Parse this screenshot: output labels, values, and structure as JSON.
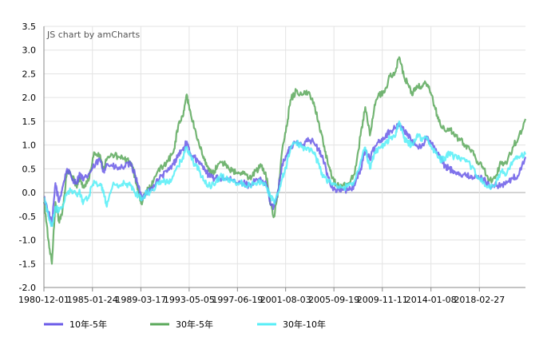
{
  "chart_data": {
    "type": "line",
    "title": "",
    "credit": "JS chart by amCharts",
    "xlabel": "",
    "ylabel": "",
    "ylim": [
      -2.0,
      3.5
    ],
    "y_ticks": [
      "3.5",
      "3.0",
      "2.5",
      "2.0",
      "1.5",
      "1.0",
      "0.5",
      "0.0",
      "-0.5",
      "-1.0",
      "-1.5",
      "-2.0"
    ],
    "x_range": [
      1980.92,
      2022.1
    ],
    "x_ticks": [
      {
        "label": "1980-12-01",
        "year": 1980.92
      },
      {
        "label": "1985-01-24",
        "year": 1985.07
      },
      {
        "label": "1989-03-17",
        "year": 1989.21
      },
      {
        "label": "1993-05-05",
        "year": 1993.34
      },
      {
        "label": "1997-06-19",
        "year": 1997.47
      },
      {
        "label": "2001-08-03",
        "year": 2001.59
      },
      {
        "label": "2005-09-19",
        "year": 2005.72
      },
      {
        "label": "2009-11-11",
        "year": 2009.86
      },
      {
        "label": "2014-01-08",
        "year": 2014.02
      },
      {
        "label": "2018-02-27",
        "year": 2018.16
      }
    ],
    "grid": true,
    "legend_position": "bottom",
    "series": [
      {
        "name": "10年-5年",
        "color": "#6a5ae8",
        "points": [
          [
            1980.92,
            -0.1
          ],
          [
            1981.3,
            -0.4
          ],
          [
            1981.6,
            -0.7
          ],
          [
            1981.9,
            0.2
          ],
          [
            1982.2,
            -0.2
          ],
          [
            1982.5,
            0.1
          ],
          [
            1982.9,
            0.5
          ],
          [
            1983.3,
            0.3
          ],
          [
            1983.7,
            0.2
          ],
          [
            1984.0,
            0.4
          ],
          [
            1984.3,
            0.25
          ],
          [
            1984.8,
            0.4
          ],
          [
            1985.2,
            0.55
          ],
          [
            1985.7,
            0.7
          ],
          [
            1986.0,
            0.45
          ],
          [
            1986.3,
            0.6
          ],
          [
            1986.8,
            0.55
          ],
          [
            1987.3,
            0.5
          ],
          [
            1987.8,
            0.55
          ],
          [
            1988.3,
            0.6
          ],
          [
            1988.7,
            0.4
          ],
          [
            1989.0,
            0.1
          ],
          [
            1989.3,
            -0.1
          ],
          [
            1989.7,
            0.0
          ],
          [
            1990.0,
            0.05
          ],
          [
            1990.5,
            0.2
          ],
          [
            1991.0,
            0.35
          ],
          [
            1991.5,
            0.45
          ],
          [
            1992.0,
            0.6
          ],
          [
            1992.4,
            0.8
          ],
          [
            1992.8,
            0.9
          ],
          [
            1993.1,
            1.05
          ],
          [
            1993.4,
            0.85
          ],
          [
            1993.8,
            0.75
          ],
          [
            1994.2,
            0.6
          ],
          [
            1994.6,
            0.55
          ],
          [
            1995.0,
            0.35
          ],
          [
            1995.5,
            0.3
          ],
          [
            1996.0,
            0.3
          ],
          [
            1996.5,
            0.3
          ],
          [
            1997.0,
            0.25
          ],
          [
            1997.5,
            0.2
          ],
          [
            1998.0,
            0.2
          ],
          [
            1998.5,
            0.15
          ],
          [
            1999.0,
            0.25
          ],
          [
            1999.5,
            0.25
          ],
          [
            2000.0,
            0.15
          ],
          [
            2000.3,
            -0.25
          ],
          [
            2000.6,
            -0.3
          ],
          [
            2000.9,
            0.0
          ],
          [
            2001.3,
            0.6
          ],
          [
            2001.7,
            0.8
          ],
          [
            2002.0,
            0.95
          ],
          [
            2002.5,
            1.05
          ],
          [
            2003.0,
            1.0
          ],
          [
            2003.5,
            1.15
          ],
          [
            2004.0,
            1.05
          ],
          [
            2004.4,
            0.9
          ],
          [
            2004.8,
            0.7
          ],
          [
            2005.2,
            0.35
          ],
          [
            2005.6,
            0.1
          ],
          [
            2006.0,
            0.05
          ],
          [
            2006.5,
            0.05
          ],
          [
            2007.0,
            0.05
          ],
          [
            2007.5,
            0.15
          ],
          [
            2008.0,
            0.5
          ],
          [
            2008.4,
            0.9
          ],
          [
            2008.8,
            0.7
          ],
          [
            2009.2,
            0.95
          ],
          [
            2009.6,
            1.1
          ],
          [
            2010.0,
            1.15
          ],
          [
            2010.5,
            1.3
          ],
          [
            2011.0,
            1.35
          ],
          [
            2011.3,
            1.45
          ],
          [
            2011.7,
            1.3
          ],
          [
            2012.0,
            1.25
          ],
          [
            2012.4,
            1.05
          ],
          [
            2012.8,
            1.0
          ],
          [
            2013.2,
            0.95
          ],
          [
            2013.6,
            1.15
          ],
          [
            2014.0,
            1.05
          ],
          [
            2014.4,
            0.9
          ],
          [
            2014.8,
            0.75
          ],
          [
            2015.2,
            0.55
          ],
          [
            2015.6,
            0.5
          ],
          [
            2016.0,
            0.45
          ],
          [
            2016.5,
            0.4
          ],
          [
            2017.0,
            0.35
          ],
          [
            2017.5,
            0.35
          ],
          [
            2018.0,
            0.3
          ],
          [
            2018.5,
            0.3
          ],
          [
            2019.0,
            0.15
          ],
          [
            2019.5,
            0.15
          ],
          [
            2020.0,
            0.15
          ],
          [
            2020.5,
            0.2
          ],
          [
            2021.0,
            0.3
          ],
          [
            2021.5,
            0.35
          ],
          [
            2022.1,
            0.75
          ]
        ]
      },
      {
        "name": "30年-5年",
        "color": "#5aa85a",
        "points": [
          [
            1980.92,
            -0.2
          ],
          [
            1981.3,
            -1.0
          ],
          [
            1981.6,
            -1.5
          ],
          [
            1981.9,
            -0.2
          ],
          [
            1982.2,
            -0.6
          ],
          [
            1982.5,
            -0.4
          ],
          [
            1982.9,
            0.45
          ],
          [
            1983.3,
            0.35
          ],
          [
            1983.7,
            0.15
          ],
          [
            1984.0,
            0.3
          ],
          [
            1984.3,
            0.1
          ],
          [
            1984.8,
            0.3
          ],
          [
            1985.2,
            0.85
          ],
          [
            1985.7,
            0.8
          ],
          [
            1986.0,
            0.5
          ],
          [
            1986.3,
            0.7
          ],
          [
            1986.8,
            0.8
          ],
          [
            1987.3,
            0.75
          ],
          [
            1987.8,
            0.7
          ],
          [
            1988.3,
            0.65
          ],
          [
            1988.7,
            0.35
          ],
          [
            1989.0,
            0.0
          ],
          [
            1989.3,
            -0.25
          ],
          [
            1989.7,
            0.05
          ],
          [
            1990.0,
            0.1
          ],
          [
            1990.5,
            0.35
          ],
          [
            1991.0,
            0.55
          ],
          [
            1991.5,
            0.65
          ],
          [
            1992.0,
            0.85
          ],
          [
            1992.4,
            1.4
          ],
          [
            1992.8,
            1.6
          ],
          [
            1993.1,
            2.05
          ],
          [
            1993.4,
            1.75
          ],
          [
            1993.8,
            1.35
          ],
          [
            1994.2,
            1.0
          ],
          [
            1994.6,
            0.75
          ],
          [
            1995.0,
            0.45
          ],
          [
            1995.5,
            0.45
          ],
          [
            1996.0,
            0.65
          ],
          [
            1996.5,
            0.6
          ],
          [
            1997.0,
            0.45
          ],
          [
            1997.5,
            0.4
          ],
          [
            1998.0,
            0.4
          ],
          [
            1998.5,
            0.3
          ],
          [
            1999.0,
            0.45
          ],
          [
            1999.5,
            0.55
          ],
          [
            2000.0,
            0.3
          ],
          [
            2000.3,
            -0.25
          ],
          [
            2000.6,
            -0.5
          ],
          [
            2000.9,
            -0.1
          ],
          [
            2001.3,
            0.9
          ],
          [
            2001.7,
            1.4
          ],
          [
            2002.0,
            1.95
          ],
          [
            2002.5,
            2.15
          ],
          [
            2003.0,
            2.05
          ],
          [
            2003.5,
            2.1
          ],
          [
            2004.0,
            1.9
          ],
          [
            2004.4,
            1.5
          ],
          [
            2004.8,
            1.05
          ],
          [
            2005.2,
            0.6
          ],
          [
            2005.6,
            0.3
          ],
          [
            2006.0,
            0.15
          ],
          [
            2006.5,
            0.15
          ],
          [
            2007.0,
            0.2
          ],
          [
            2007.5,
            0.4
          ],
          [
            2008.0,
            1.2
          ],
          [
            2008.4,
            1.8
          ],
          [
            2008.8,
            1.2
          ],
          [
            2009.2,
            1.85
          ],
          [
            2009.6,
            2.05
          ],
          [
            2010.0,
            2.1
          ],
          [
            2010.5,
            2.45
          ],
          [
            2011.0,
            2.55
          ],
          [
            2011.3,
            2.85
          ],
          [
            2011.7,
            2.45
          ],
          [
            2012.0,
            2.3
          ],
          [
            2012.4,
            2.05
          ],
          [
            2012.8,
            2.25
          ],
          [
            2013.2,
            2.2
          ],
          [
            2013.6,
            2.3
          ],
          [
            2014.0,
            2.1
          ],
          [
            2014.4,
            1.75
          ],
          [
            2014.8,
            1.45
          ],
          [
            2015.2,
            1.3
          ],
          [
            2015.6,
            1.35
          ],
          [
            2016.0,
            1.2
          ],
          [
            2016.5,
            1.1
          ],
          [
            2017.0,
            1.0
          ],
          [
            2017.5,
            0.9
          ],
          [
            2018.0,
            0.65
          ],
          [
            2018.5,
            0.5
          ],
          [
            2019.0,
            0.25
          ],
          [
            2019.5,
            0.3
          ],
          [
            2020.0,
            0.65
          ],
          [
            2020.5,
            0.6
          ],
          [
            2021.0,
            0.95
          ],
          [
            2021.5,
            1.15
          ],
          [
            2022.1,
            1.55
          ]
        ]
      },
      {
        "name": "30年-10年",
        "color": "#55eef7",
        "points": [
          [
            1980.92,
            -0.1
          ],
          [
            1981.3,
            -0.5
          ],
          [
            1981.6,
            -0.7
          ],
          [
            1981.9,
            -0.3
          ],
          [
            1982.2,
            -0.4
          ],
          [
            1982.5,
            -0.3
          ],
          [
            1982.9,
            0.0
          ],
          [
            1983.3,
            0.05
          ],
          [
            1983.7,
            -0.05
          ],
          [
            1984.0,
            0.0
          ],
          [
            1984.3,
            -0.2
          ],
          [
            1984.8,
            -0.05
          ],
          [
            1985.2,
            0.25
          ],
          [
            1985.7,
            0.15
          ],
          [
            1986.0,
            0.05
          ],
          [
            1986.3,
            -0.3
          ],
          [
            1986.8,
            0.15
          ],
          [
            1987.3,
            0.1
          ],
          [
            1987.8,
            0.2
          ],
          [
            1988.3,
            0.15
          ],
          [
            1988.7,
            0.0
          ],
          [
            1989.0,
            -0.05
          ],
          [
            1989.3,
            -0.15
          ],
          [
            1989.7,
            0.0
          ],
          [
            1990.0,
            0.0
          ],
          [
            1990.5,
            0.15
          ],
          [
            1991.0,
            0.25
          ],
          [
            1991.5,
            0.2
          ],
          [
            1992.0,
            0.35
          ],
          [
            1992.4,
            0.55
          ],
          [
            1992.8,
            0.75
          ],
          [
            1993.1,
            0.95
          ],
          [
            1993.4,
            0.8
          ],
          [
            1993.8,
            0.6
          ],
          [
            1994.2,
            0.45
          ],
          [
            1994.6,
            0.25
          ],
          [
            1995.0,
            0.15
          ],
          [
            1995.5,
            0.15
          ],
          [
            1996.0,
            0.35
          ],
          [
            1996.5,
            0.3
          ],
          [
            1997.0,
            0.25
          ],
          [
            1997.5,
            0.2
          ],
          [
            1998.0,
            0.2
          ],
          [
            1998.5,
            0.15
          ],
          [
            1999.0,
            0.2
          ],
          [
            1999.5,
            0.25
          ],
          [
            2000.0,
            0.1
          ],
          [
            2000.3,
            -0.1
          ],
          [
            2000.6,
            -0.2
          ],
          [
            2000.9,
            -0.05
          ],
          [
            2001.3,
            0.3
          ],
          [
            2001.7,
            0.6
          ],
          [
            2002.0,
            0.95
          ],
          [
            2002.5,
            1.05
          ],
          [
            2003.0,
            0.95
          ],
          [
            2003.5,
            0.95
          ],
          [
            2004.0,
            0.85
          ],
          [
            2004.4,
            0.6
          ],
          [
            2004.8,
            0.35
          ],
          [
            2005.2,
            0.25
          ],
          [
            2005.6,
            0.2
          ],
          [
            2006.0,
            0.1
          ],
          [
            2006.5,
            0.1
          ],
          [
            2007.0,
            0.15
          ],
          [
            2007.5,
            0.25
          ],
          [
            2008.0,
            0.65
          ],
          [
            2008.4,
            0.95
          ],
          [
            2008.8,
            0.5
          ],
          [
            2009.2,
            0.85
          ],
          [
            2009.6,
            0.95
          ],
          [
            2010.0,
            1.0
          ],
          [
            2010.5,
            1.15
          ],
          [
            2011.0,
            1.2
          ],
          [
            2011.3,
            1.5
          ],
          [
            2011.7,
            1.15
          ],
          [
            2012.0,
            1.05
          ],
          [
            2012.4,
            1.0
          ],
          [
            2012.8,
            1.2
          ],
          [
            2013.2,
            1.15
          ],
          [
            2013.6,
            1.15
          ],
          [
            2014.0,
            1.0
          ],
          [
            2014.4,
            0.85
          ],
          [
            2014.8,
            0.7
          ],
          [
            2015.2,
            0.7
          ],
          [
            2015.6,
            0.85
          ],
          [
            2016.0,
            0.75
          ],
          [
            2016.5,
            0.7
          ],
          [
            2017.0,
            0.65
          ],
          [
            2017.5,
            0.55
          ],
          [
            2018.0,
            0.35
          ],
          [
            2018.5,
            0.2
          ],
          [
            2019.0,
            0.1
          ],
          [
            2019.5,
            0.15
          ],
          [
            2020.0,
            0.45
          ],
          [
            2020.5,
            0.4
          ],
          [
            2021.0,
            0.65
          ],
          [
            2021.5,
            0.75
          ],
          [
            2022.1,
            0.8
          ]
        ]
      }
    ]
  }
}
